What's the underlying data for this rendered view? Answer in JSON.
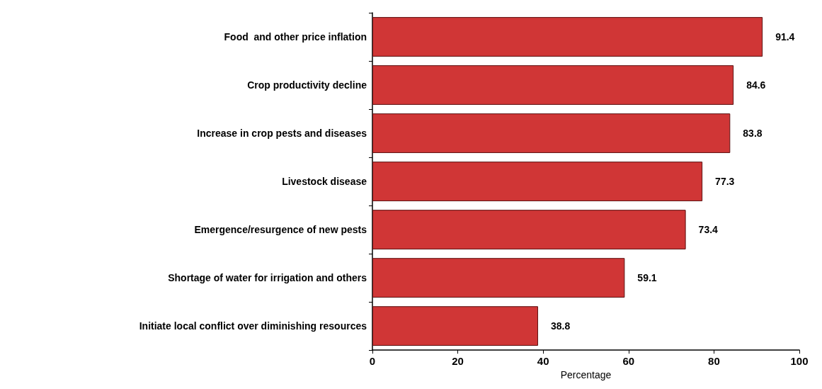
{
  "chart_data": {
    "type": "bar",
    "orientation": "horizontal",
    "xlabel": "Percentage",
    "categories": [
      "Food  and other price inflation",
      "Crop productivity decline",
      "Increase in crop pests and diseases",
      "Livestock disease",
      "Emergence/resurgence of new pests",
      "Shortage of water for irrigation and others",
      "Initiate local conflict over diminishing resources"
    ],
    "values": [
      91.4,
      84.6,
      83.8,
      77.3,
      73.4,
      59.1,
      38.8
    ],
    "color": "#d03636",
    "xlim": [
      0,
      100
    ],
    "xticks": [
      0,
      20,
      40,
      60,
      80,
      100
    ],
    "data_labels": true,
    "grid": false
  }
}
